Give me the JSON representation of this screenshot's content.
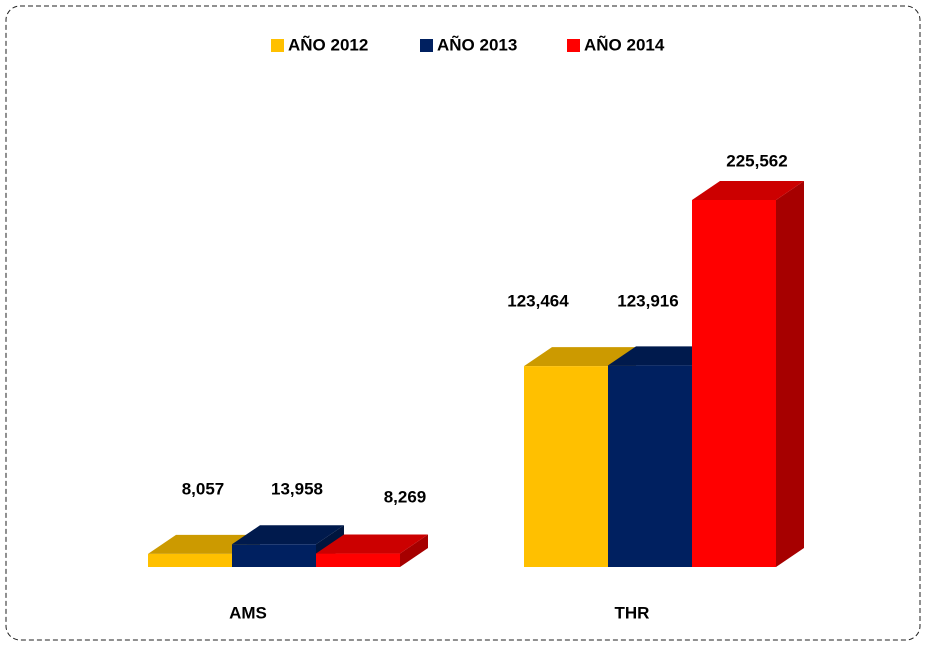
{
  "chart_data": {
    "type": "bar3d",
    "categories": [
      "AMS",
      "THR"
    ],
    "series": [
      {
        "name": "AÑO 2012",
        "color": "#FFC000",
        "values": [
          8057,
          123464
        ],
        "value_labels": [
          "8,057",
          "123,464"
        ]
      },
      {
        "name": "AÑO 2013",
        "color": "#002060",
        "values": [
          13958,
          123916
        ],
        "value_labels": [
          "13,958",
          "123,916"
        ]
      },
      {
        "name": "AÑO 2014",
        "color": "#FF0000",
        "values": [
          8269,
          225562
        ],
        "value_labels": [
          "8,269",
          "225,562"
        ]
      }
    ],
    "legend": "top"
  }
}
